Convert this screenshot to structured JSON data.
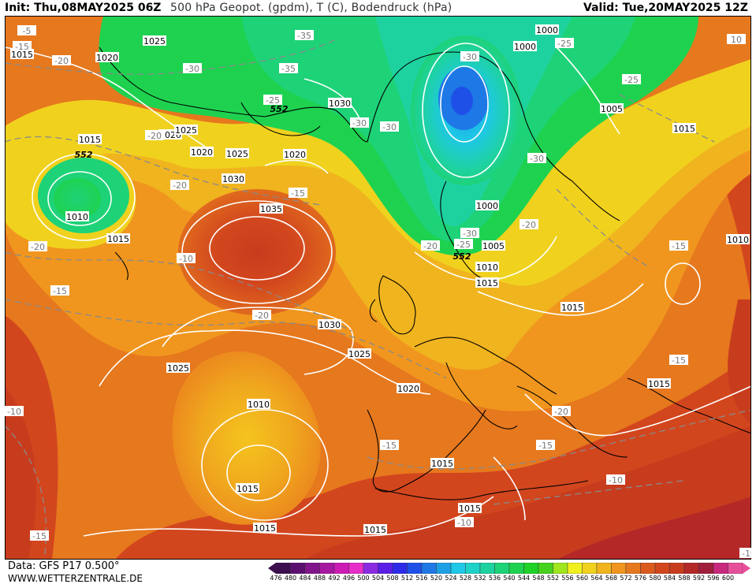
{
  "header": {
    "init": "Init: Thu,08MAY2025 06Z",
    "title": "500 hPa Geopot. (gpdm), T (C), Bodendruck (hPa)",
    "valid": "Valid: Tue,20MAY2025 12Z"
  },
  "footer": {
    "data_source": "Data: GFS P17 0.500°",
    "website": "WWW.WETTERZENTRALE.DE"
  },
  "legend": {
    "unit": "gpdm",
    "values": [
      "476",
      "480",
      "484",
      "488",
      "492",
      "496",
      "500",
      "504",
      "508",
      "512",
      "516",
      "520",
      "524",
      "528",
      "532",
      "536",
      "540",
      "544",
      "548",
      "552",
      "556",
      "560",
      "564",
      "568",
      "572",
      "576",
      "580",
      "584",
      "588",
      "592",
      "596",
      "600"
    ],
    "colors": [
      "#3c0d4f",
      "#5b1070",
      "#80148a",
      "#a6189f",
      "#cc1cb5",
      "#e82ec8",
      "#8a2be2",
      "#5a1ee6",
      "#2d2ae8",
      "#1e50e8",
      "#1e78e6",
      "#1ea0e6",
      "#1ec8e6",
      "#1ed2c8",
      "#1ed2a0",
      "#1ed278",
      "#1ed250",
      "#1ed228",
      "#46d21e",
      "#a0e61e",
      "#f0f01e",
      "#f0d21e",
      "#f0b41e",
      "#f0961e",
      "#e6781e",
      "#dc5a1e",
      "#d2461e",
      "#c83c1e",
      "#b42828",
      "#a01e3c",
      "#c8287d",
      "#e6509b"
    ]
  },
  "pressure_labels": [
    "1025",
    "1015",
    "1020",
    "1020",
    "1025",
    "1015",
    "1020",
    "1025",
    "1030",
    "1035",
    "1020",
    "1030",
    "1000",
    "1000",
    "1005",
    "1015",
    "1010",
    "1015",
    "1030",
    "1000",
    "1005",
    "1010",
    "1015",
    "1010",
    "1015",
    "1025",
    "1025",
    "1020",
    "1015",
    "1010",
    "1015",
    "1015",
    "1015",
    "1015",
    "1015"
  ],
  "temperature_labels": [
    "-35",
    "-35",
    "-30",
    "-30",
    "-25",
    "-20",
    "-20",
    "-20",
    "-15",
    "-15",
    "-10",
    "-15",
    "-20",
    "-30",
    "-30",
    "-30",
    "-30",
    "-25",
    "-25",
    "-20",
    "-20",
    "-25",
    "-20",
    "-15",
    "-15",
    "-20",
    "-15",
    "-15",
    "-10",
    "-10",
    "-15",
    "-10",
    "-10",
    "-5",
    "10"
  ],
  "geopotential_labels": [
    "552",
    "552",
    "552",
    "552"
  ]
}
